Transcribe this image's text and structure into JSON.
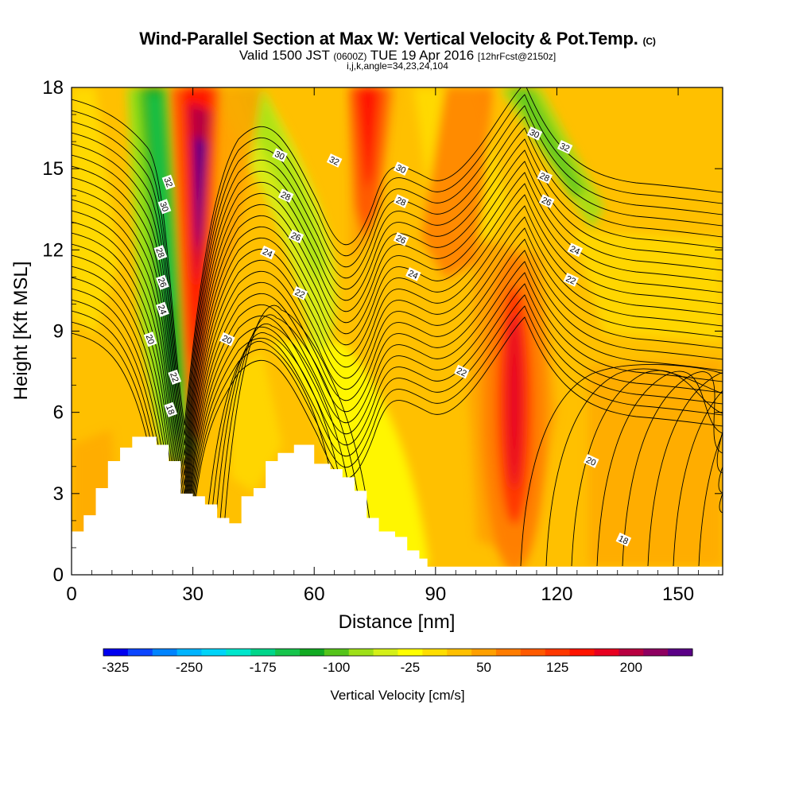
{
  "header": {
    "title": "Wind-Parallel Section at Max W: Vertical Velocity & Pot.Temp.",
    "title_mark": "(C)",
    "valid_prefix": "Valid 1500 JST",
    "valid_utc": "(0600Z)",
    "valid_date": "TUE 19 Apr 2016",
    "forecast": "[12hrFcst@2150z]",
    "indices": "i,j,k,angle=34,23,24,104"
  },
  "chart_data": {
    "type": "heatmap",
    "xlabel": "Distance [nm]",
    "ylabel": "Height [Kft MSL]",
    "xlim": [
      0,
      161
    ],
    "ylim": [
      0,
      18
    ],
    "xticks": [
      0,
      30,
      60,
      90,
      120,
      150
    ],
    "yticks": [
      0,
      3,
      6,
      9,
      12,
      15,
      18
    ],
    "colorbar": {
      "label": "Vertical Velocity [cm/s]",
      "tick_labels": [
        "-325",
        "-250",
        "-175",
        "-100",
        "-25",
        "50",
        "125",
        "200"
      ],
      "colors": [
        "#0000f0",
        "#0b45ff",
        "#0084ff",
        "#00b4ff",
        "#00d4f8",
        "#00e6cc",
        "#00d68a",
        "#16c44c",
        "#12aa22",
        "#55c41a",
        "#9ee018",
        "#d4f018",
        "#ffff00",
        "#ffde00",
        "#ffc000",
        "#ffa000",
        "#ff7c00",
        "#ff5a00",
        "#ff3800",
        "#ff1400",
        "#e80020",
        "#b80040",
        "#8e0060",
        "#5a0086"
      ]
    },
    "terrain_heights_kft": [
      [
        0,
        1.6
      ],
      [
        3,
        2.2
      ],
      [
        6,
        3.2
      ],
      [
        9,
        4.2
      ],
      [
        12,
        4.7
      ],
      [
        15,
        5.1
      ],
      [
        21,
        4.8
      ],
      [
        24,
        4.2
      ],
      [
        27,
        3.0
      ],
      [
        30,
        2.9
      ],
      [
        33,
        2.6
      ],
      [
        36,
        2.1
      ],
      [
        39,
        1.9
      ],
      [
        42,
        2.9
      ],
      [
        45,
        3.2
      ],
      [
        48,
        4.2
      ],
      [
        51,
        4.5
      ],
      [
        55,
        4.8
      ],
      [
        60,
        4.1
      ],
      [
        64,
        3.9
      ],
      [
        67,
        3.6
      ],
      [
        70,
        3.1
      ],
      [
        73,
        2.1
      ],
      [
        76,
        1.6
      ],
      [
        80,
        1.4
      ],
      [
        83,
        0.9
      ],
      [
        86,
        0.6
      ],
      [
        88,
        0.3
      ],
      [
        161,
        0.3
      ]
    ],
    "theta_contour_labels": [
      {
        "label": "32",
        "x": 24,
        "y": 14.5
      },
      {
        "label": "30",
        "x": 23,
        "y": 13.6
      },
      {
        "label": "28",
        "x": 22,
        "y": 11.9
      },
      {
        "label": "26",
        "x": 22.5,
        "y": 10.8
      },
      {
        "label": "24",
        "x": 22.5,
        "y": 9.8
      },
      {
        "label": "20",
        "x": 19.5,
        "y": 8.7
      },
      {
        "label": "22",
        "x": 25.5,
        "y": 7.3
      },
      {
        "label": "18",
        "x": 24.5,
        "y": 6.1
      },
      {
        "label": "20",
        "x": 38.5,
        "y": 8.7
      },
      {
        "label": "24",
        "x": 48.5,
        "y": 11.9
      },
      {
        "label": "22",
        "x": 56.5,
        "y": 10.4
      },
      {
        "label": "26",
        "x": 55.5,
        "y": 12.5
      },
      {
        "label": "28",
        "x": 53,
        "y": 14.0
      },
      {
        "label": "30",
        "x": 51.5,
        "y": 15.5
      },
      {
        "label": "32",
        "x": 65,
        "y": 15.3
      },
      {
        "label": "30",
        "x": 81.5,
        "y": 15.0
      },
      {
        "label": "28",
        "x": 81.5,
        "y": 13.8
      },
      {
        "label": "26",
        "x": 81.5,
        "y": 12.4
      },
      {
        "label": "24",
        "x": 84.5,
        "y": 11.1
      },
      {
        "label": "22",
        "x": 96.5,
        "y": 7.5
      },
      {
        "label": "30",
        "x": 114.5,
        "y": 16.3
      },
      {
        "label": "32",
        "x": 122,
        "y": 15.8
      },
      {
        "label": "28",
        "x": 117,
        "y": 14.7
      },
      {
        "label": "26",
        "x": 117.5,
        "y": 13.8
      },
      {
        "label": "24",
        "x": 124.5,
        "y": 12.0
      },
      {
        "label": "22",
        "x": 123.5,
        "y": 10.9
      },
      {
        "label": "20",
        "x": 128.5,
        "y": 4.2
      },
      {
        "label": "18",
        "x": 136.5,
        "y": 1.3
      }
    ]
  }
}
